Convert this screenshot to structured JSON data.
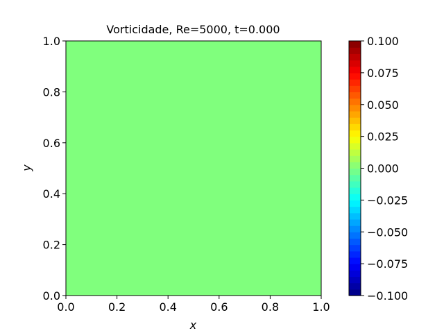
{
  "chart_data": {
    "type": "heatmap",
    "title": "Vorticidade, Re=5000, t=0.000",
    "xlabel": "x",
    "ylabel": "y",
    "xlim": [
      0.0,
      1.0
    ],
    "ylim": [
      0.0,
      1.0
    ],
    "x_ticks": [
      0.0,
      0.2,
      0.4,
      0.6,
      0.8,
      1.0
    ],
    "y_ticks": [
      0.0,
      0.2,
      0.4,
      0.6,
      0.8,
      1.0
    ],
    "x_tick_labels": [
      "0.0",
      "0.2",
      "0.4",
      "0.6",
      "0.8",
      "1.0"
    ],
    "y_tick_labels": [
      "0.0",
      "0.2",
      "0.4",
      "0.6",
      "0.8",
      "1.0"
    ],
    "field_value": 0.0,
    "field_color": "#80ff7d",
    "grid": false,
    "colorbar": {
      "colormap": "jet",
      "vmin": -0.1,
      "vmax": 0.1,
      "levels": 40,
      "ticks": [
        -0.1,
        -0.075,
        -0.05,
        -0.025,
        0.0,
        0.025,
        0.05,
        0.075,
        0.1
      ],
      "tick_labels": [
        "−0.100",
        "−0.075",
        "−0.050",
        "−0.025",
        "0.000",
        "0.025",
        "0.050",
        "0.075",
        "0.100"
      ]
    }
  }
}
